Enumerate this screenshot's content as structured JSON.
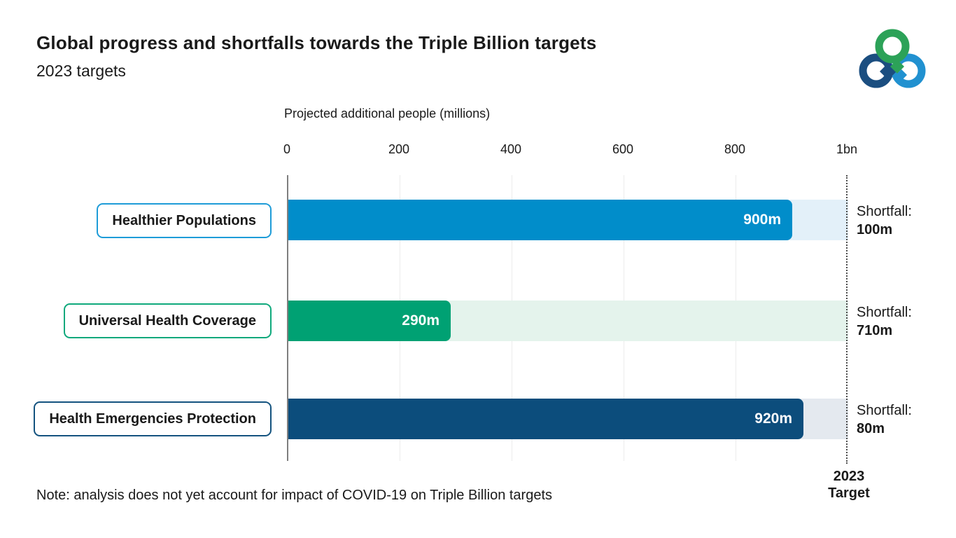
{
  "header": {
    "title": "Global progress and shortfalls towards the Triple Billion targets",
    "subtitle": "2023 targets"
  },
  "logo": {
    "name": "WHO Triple Billion logo",
    "colors": {
      "green": "#2CA258",
      "navy": "#1B4E80",
      "blue": "#2191D0"
    }
  },
  "chart_data": {
    "type": "bar",
    "orientation": "horizontal",
    "title": "Global progress and shortfalls towards the Triple Billion targets",
    "subtitle": "2023 targets",
    "xlabel": "Projected additional people (millions)",
    "xlim": [
      0,
      1000
    ],
    "x_ticks": [
      0,
      200,
      400,
      600,
      800,
      1000
    ],
    "tick_labels": [
      "0",
      "200",
      "400",
      "600",
      "800",
      "1bn"
    ],
    "grid": "vertical, light gray",
    "target_value": 1000,
    "target_line_style": "dotted vertical line at 1bn",
    "categories": [
      "Healthier Populations",
      "Universal Health Coverage",
      "Health Emergencies Protection"
    ],
    "values": [
      900,
      290,
      920
    ],
    "value_labels": [
      "900m",
      "290m",
      "920m"
    ],
    "shortfall_prefix": "Shortfall:",
    "shortfalls": [
      100,
      710,
      80
    ],
    "shortfall_labels": [
      "100m",
      "710m",
      "80m"
    ],
    "bar_colors": [
      "#018DCA",
      "#00A173",
      "#0C4D7C"
    ],
    "remainder_colors": [
      "#E3F0F9",
      "#E4F3EC",
      "#E4E9EF"
    ],
    "label_border_colors": [
      "#1E9CD8",
      "#0FA97C",
      "#14537F"
    ],
    "target_label": "2023\nTarget"
  },
  "note": "Note: analysis does not yet account for impact of COVID-19 on Triple Billion targets"
}
